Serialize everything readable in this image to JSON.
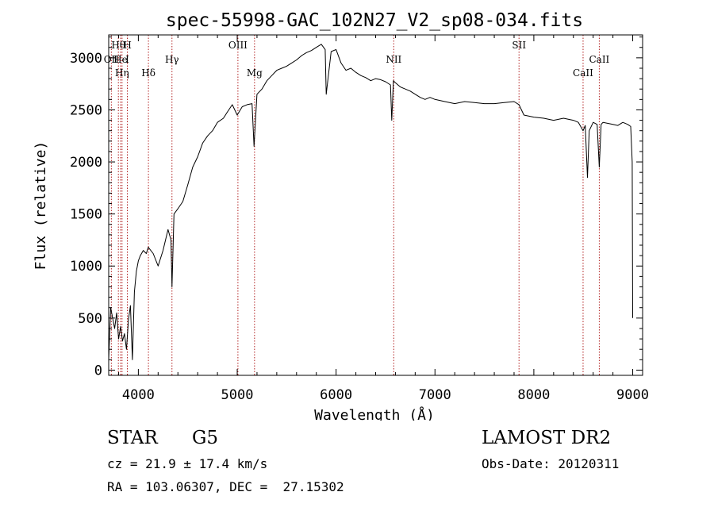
{
  "chart_data": {
    "type": "line",
    "title": "spec-55998-GAC_102N27_V2_sp08-034.fits",
    "xlabel": "Wavelength (Å)",
    "ylabel": "Flux (relative)",
    "xlim": [
      3700,
      9100
    ],
    "ylim": [
      -50,
      3220
    ],
    "xticks": [
      4000,
      5000,
      6000,
      7000,
      8000,
      9000
    ],
    "yticks": [
      0,
      500,
      1000,
      1500,
      2000,
      2500,
      3000
    ],
    "grid": false,
    "line_color": "#000000",
    "marker_color": "#b22222",
    "series": [
      {
        "x": [
          3700,
          3720,
          3740,
          3760,
          3780,
          3800,
          3820,
          3840,
          3860,
          3880,
          3900,
          3920,
          3940,
          3960,
          3980,
          4000,
          4020,
          4050,
          4080,
          4100,
          4150,
          4200,
          4250,
          4300,
          4330,
          4340,
          4360,
          4400,
          4450,
          4500,
          4550,
          4600,
          4650,
          4700,
          4750,
          4800,
          4860,
          4900,
          4950,
          5000,
          5050,
          5100,
          5150,
          5170,
          5200,
          5250,
          5300,
          5350,
          5400,
          5450,
          5500,
          5550,
          5600,
          5650,
          5700,
          5750,
          5800,
          5850,
          5890,
          5900,
          5950,
          6000,
          6050,
          6100,
          6150,
          6200,
          6250,
          6300,
          6350,
          6400,
          6450,
          6500,
          6550,
          6563,
          6580,
          6600,
          6650,
          6700,
          6750,
          6800,
          6850,
          6900,
          6950,
          7000,
          7100,
          7200,
          7300,
          7400,
          7500,
          7600,
          7700,
          7800,
          7850,
          7900,
          8000,
          8100,
          8200,
          8300,
          8400,
          8450,
          8498,
          8520,
          8542,
          8560,
          8600,
          8640,
          8662,
          8680,
          8700,
          8750,
          8800,
          8850,
          8900,
          8950,
          8980,
          8995,
          9000
        ],
        "y": [
          100,
          600,
          500,
          400,
          550,
          300,
          420,
          280,
          350,
          200,
          480,
          620,
          100,
          750,
          950,
          1050,
          1100,
          1150,
          1120,
          1180,
          1120,
          1000,
          1150,
          1350,
          1250,
          800,
          1500,
          1550,
          1620,
          1780,
          1950,
          2050,
          2180,
          2250,
          2300,
          2380,
          2420,
          2480,
          2550,
          2450,
          2530,
          2550,
          2560,
          2150,
          2650,
          2700,
          2780,
          2830,
          2880,
          2900,
          2920,
          2950,
          2980,
          3020,
          3050,
          3070,
          3100,
          3130,
          3080,
          2650,
          3060,
          3080,
          2950,
          2880,
          2900,
          2860,
          2830,
          2810,
          2780,
          2800,
          2790,
          2770,
          2740,
          2400,
          2780,
          2760,
          2720,
          2700,
          2680,
          2650,
          2620,
          2600,
          2620,
          2600,
          2580,
          2560,
          2580,
          2570,
          2560,
          2560,
          2570,
          2580,
          2550,
          2450,
          2430,
          2420,
          2400,
          2420,
          2400,
          2380,
          2300,
          2350,
          1850,
          2300,
          2380,
          2360,
          1950,
          2360,
          2380,
          2370,
          2360,
          2350,
          2380,
          2360,
          2340,
          2000,
          500
        ]
      }
    ],
    "lines": [
      {
        "label": "Hθ",
        "x": 3798,
        "row": 0
      },
      {
        "label": "H",
        "x": 3889,
        "row": 0
      },
      {
        "label": "OII",
        "x": 3727,
        "row": 1
      },
      {
        "label": "He",
        "x": 3820,
        "row": 1
      },
      {
        "label": "I",
        "x": 3889,
        "row": 1
      },
      {
        "label": "Hη",
        "x": 3835,
        "row": 2
      },
      {
        "label": "Hγ",
        "x": 4340,
        "row": 1
      },
      {
        "label": "Hδ",
        "x": 4102,
        "row": 2
      },
      {
        "label": "OIII",
        "x": 5007,
        "row": 0
      },
      {
        "label": "Mg",
        "x": 5175,
        "row": 2
      },
      {
        "label": "NII",
        "x": 6583,
        "row": 1
      },
      {
        "label": "SII",
        "x": 7850,
        "row": 0
      },
      {
        "label": "CaII",
        "x": 8662,
        "row": 1
      },
      {
        "label": "CaII",
        "x": 8498,
        "row": 2
      }
    ]
  },
  "info": {
    "object_type": "STAR",
    "subclass": "G5",
    "survey": "LAMOST DR2",
    "cz": "cz = 21.9 ± 17.4 km/s",
    "obs_date": "Obs-Date: 20120311",
    "coords": "RA = 103.06307, DEC =  27.15302"
  }
}
